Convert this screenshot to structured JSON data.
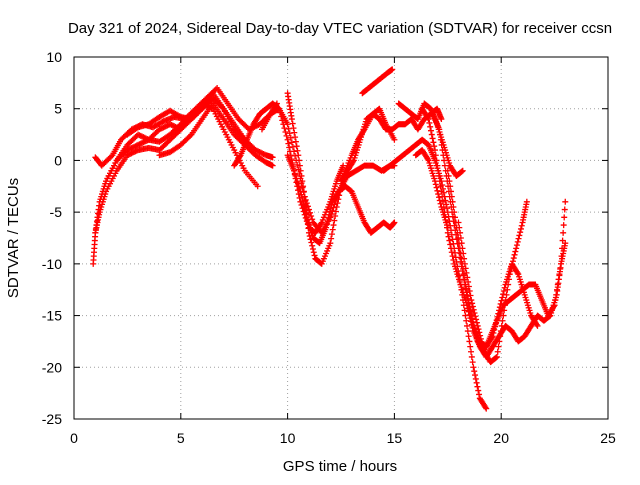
{
  "chart_data": {
    "type": "scatter",
    "title": "Day 321 of 2024, Sidereal Day-to-day VTEC variation (SDTVAR) for receiver ccsn",
    "xlabel": "GPS time / hours",
    "ylabel": "SDTVAR / TECUs",
    "xlim": [
      0,
      25
    ],
    "ylim": [
      -25,
      10
    ],
    "x_ticks": [
      "0",
      "5",
      "10",
      "15",
      "20",
      "25"
    ],
    "y_ticks": [
      "-25",
      "-20",
      "-15",
      "-10",
      "-5",
      "0",
      "5",
      "10"
    ],
    "x_tick_values": [
      0,
      5,
      10,
      15,
      20,
      25
    ],
    "y_tick_values": [
      -25,
      -20,
      -15,
      -10,
      -5,
      0,
      5,
      10
    ],
    "grid": true,
    "marker": "plus",
    "series_color": "#ff0000",
    "series": [
      {
        "x": [
          0.9,
          1.0,
          1.2,
          1.5,
          2.0,
          2.5,
          3.0,
          3.5,
          4.0,
          4.5,
          5.0,
          5.5,
          6.0,
          6.5,
          7.0,
          7.5,
          8.0,
          8.6
        ],
        "y": [
          -10.0,
          -7.0,
          -5.0,
          -3.0,
          -1.0,
          0.5,
          1.0,
          1.2,
          1.0,
          2.0,
          3.0,
          4.5,
          5.5,
          5.0,
          3.0,
          1.0,
          -1.0,
          -2.5
        ]
      },
      {
        "x": [
          1.0,
          1.2,
          1.5,
          2.0,
          2.5,
          3.0,
          3.5,
          4.0,
          4.5,
          5.0,
          5.5,
          6.0,
          6.5,
          7.0,
          7.5,
          8.0,
          8.5,
          9.0,
          9.3
        ],
        "y": [
          -7.0,
          -4.0,
          -2.0,
          0.0,
          1.0,
          1.5,
          2.0,
          1.8,
          2.5,
          3.5,
          4.5,
          5.5,
          6.5,
          5.0,
          3.0,
          2.0,
          1.0,
          0.5,
          0.3
        ]
      },
      {
        "x": [
          1.0,
          1.3,
          1.8,
          2.2,
          2.7,
          3.2,
          3.7,
          4.2,
          4.7,
          5.2,
          5.7,
          6.2,
          6.7,
          7.2,
          7.7,
          8.2,
          8.7,
          9.2,
          9.5
        ],
        "y": [
          0.3,
          -0.5,
          0.5,
          2.0,
          3.0,
          3.5,
          3.2,
          3.8,
          4.2,
          4.0,
          5.0,
          6.0,
          7.0,
          5.5,
          4.0,
          3.0,
          3.5,
          4.5,
          5.5
        ]
      },
      {
        "x": [
          1.5,
          2.0,
          2.5,
          3.0,
          3.5,
          4.0,
          4.5,
          5.0,
          5.5,
          6.0,
          6.5,
          7.0,
          7.5,
          8.0
        ],
        "y": [
          -2.0,
          0.0,
          1.5,
          2.5,
          2.0,
          3.0,
          3.5,
          3.0,
          4.0,
          5.0,
          6.0,
          5.0,
          3.5,
          2.0
        ]
      },
      {
        "x": [
          2.5,
          3.0,
          3.5,
          4.0,
          4.5,
          5.0,
          5.5,
          6.0,
          6.5
        ],
        "y": [
          2.5,
          3.2,
          3.5,
          4.2,
          4.8,
          4.2,
          4.0,
          5.0,
          6.0
        ]
      },
      {
        "x": [
          4.0,
          4.5,
          5.0,
          5.5,
          6.0,
          6.5,
          7.0,
          7.5,
          8.0,
          8.5,
          9.0,
          9.3
        ],
        "y": [
          0.5,
          0.8,
          1.5,
          2.5,
          4.0,
          5.5,
          4.0,
          2.5,
          1.5,
          0.5,
          -0.2,
          -0.5
        ]
      },
      {
        "x": [
          7.5,
          7.8,
          8.1,
          8.4,
          8.7,
          9.0,
          9.3,
          9.6,
          10.0,
          10.3,
          10.6,
          11.0,
          11.3,
          11.6,
          12.0,
          12.3,
          12.6
        ],
        "y": [
          -0.5,
          0.5,
          2.0,
          3.5,
          4.5,
          5.0,
          5.5,
          5.0,
          2.0,
          -1.0,
          -4.0,
          -6.5,
          -7.0,
          -6.0,
          -4.0,
          -2.0,
          -0.5
        ]
      },
      {
        "x": [
          8.8,
          9.2,
          9.6,
          10.0,
          10.4,
          10.8,
          11.2,
          11.6,
          12.0,
          12.4,
          12.8,
          13.2,
          13.6,
          14.0,
          14.4,
          14.8,
          15.0
        ],
        "y": [
          3.0,
          4.5,
          5.0,
          3.5,
          0.0,
          -3.5,
          -6.0,
          -7.0,
          -5.5,
          -3.0,
          -1.5,
          -1.0,
          -0.5,
          -0.5,
          -1.0,
          -0.5,
          -0.5
        ]
      },
      {
        "x": [
          10.0,
          10.2,
          10.5,
          10.8,
          11.0,
          11.3,
          11.6,
          12.0,
          12.3,
          12.6,
          13.0,
          13.3,
          13.6,
          14.0,
          14.3,
          14.6,
          15.0
        ],
        "y": [
          6.5,
          4.0,
          0.5,
          -3.5,
          -7.0,
          -9.5,
          -10.0,
          -8.0,
          -4.5,
          -1.5,
          0.5,
          2.0,
          3.0,
          4.5,
          5.0,
          3.5,
          2.0
        ]
      },
      {
        "x": [
          10.0,
          10.3,
          10.6,
          10.9,
          11.2,
          11.5,
          11.8,
          12.1,
          12.4,
          12.7,
          13.0,
          13.3,
          13.6,
          13.9,
          14.2,
          14.5,
          14.8,
          15.0
        ],
        "y": [
          0.5,
          -1.0,
          -3.0,
          -5.5,
          -7.5,
          -8.0,
          -6.5,
          -4.0,
          -3.0,
          -2.5,
          -3.0,
          -4.5,
          -6.0,
          -7.0,
          -6.5,
          -6.0,
          -6.5,
          -6.0
        ]
      },
      {
        "x": [
          13.5,
          13.8,
          14.1,
          14.4,
          14.7,
          14.9
        ],
        "y": [
          6.5,
          7.0,
          7.5,
          8.0,
          8.5,
          8.8
        ]
      },
      {
        "x": [
          12.5,
          12.8,
          13.1,
          13.4,
          13.7,
          14.0,
          14.3,
          14.6,
          14.9,
          15.2,
          15.5,
          15.8,
          16.1,
          16.4,
          16.7,
          17.0,
          17.2
        ],
        "y": [
          -2.0,
          -1.0,
          0.0,
          2.0,
          4.0,
          4.5,
          4.0,
          3.0,
          3.0,
          3.5,
          3.5,
          4.0,
          3.0,
          4.0,
          4.5,
          5.0,
          4.0
        ]
      },
      {
        "x": [
          15.2,
          15.5,
          15.8,
          16.1,
          16.4,
          16.7,
          17.0,
          17.3,
          17.6,
          17.9,
          18.2
        ],
        "y": [
          5.5,
          5.0,
          4.5,
          4.0,
          5.5,
          5.0,
          3.5,
          1.5,
          -0.5,
          -1.5,
          -1.0
        ]
      },
      {
        "x": [
          14.5,
          14.8,
          15.1,
          15.4,
          15.7,
          16.0,
          16.3,
          16.6,
          16.9,
          17.2,
          17.5,
          17.8,
          18.1,
          18.4,
          18.7,
          19.0,
          19.3
        ],
        "y": [
          -1.0,
          -0.5,
          0.0,
          0.5,
          1.0,
          1.5,
          2.0,
          1.5,
          0.0,
          -2.0,
          -5.0,
          -8.5,
          -12.0,
          -16.0,
          -20.0,
          -23.0,
          -24.0
        ]
      },
      {
        "x": [
          16.3,
          16.6,
          16.9,
          17.2,
          17.5,
          17.8,
          18.1,
          18.4,
          18.7,
          19.0,
          19.3,
          19.6,
          19.9,
          20.2,
          20.5,
          20.8,
          21.1,
          21.4,
          21.7,
          22.0,
          22.3,
          22.6,
          22.8,
          23.0
        ],
        "y": [
          5.0,
          4.0,
          1.0,
          -3.0,
          -7.0,
          -10.0,
          -12.0,
          -14.0,
          -16.5,
          -18.0,
          -19.0,
          -18.0,
          -17.0,
          -16.0,
          -16.5,
          -17.5,
          -17.0,
          -16.0,
          -15.0,
          -15.5,
          -15.0,
          -13.0,
          -10.0,
          -8.0
        ]
      },
      {
        "x": [
          16.8,
          17.1,
          17.4,
          17.7,
          18.0,
          18.3,
          18.6,
          18.9,
          19.2,
          19.5,
          19.8,
          20.1,
          20.4,
          20.7,
          21.0,
          21.3,
          21.6,
          21.9,
          22.2,
          22.5,
          22.8,
          23.0
        ],
        "y": [
          4.5,
          3.0,
          -1.0,
          -5.0,
          -8.5,
          -12.0,
          -15.0,
          -17.5,
          -18.5,
          -17.0,
          -15.5,
          -14.0,
          -13.5,
          -13.0,
          -12.5,
          -12.0,
          -12.0,
          -13.5,
          -15.0,
          -14.0,
          -10.0,
          -4.0
        ]
      },
      {
        "x": [
          17.5,
          17.8,
          18.1,
          18.4,
          18.7,
          19.0,
          19.3,
          19.6,
          19.9,
          20.2,
          20.5,
          20.8,
          21.1,
          21.4,
          21.7
        ],
        "y": [
          -1.0,
          -5.0,
          -9.0,
          -13.0,
          -16.0,
          -17.5,
          -18.0,
          -17.0,
          -14.5,
          -12.0,
          -10.0,
          -11.0,
          -13.0,
          -15.0,
          -16.0
        ]
      },
      {
        "x": [
          18.0,
          18.3,
          18.6,
          18.9,
          19.2,
          19.5,
          19.8,
          20.1,
          20.4,
          20.7,
          21.0,
          21.2
        ],
        "y": [
          -6.0,
          -10.0,
          -13.5,
          -16.0,
          -18.5,
          -19.5,
          -19.0,
          -15.0,
          -11.0,
          -8.5,
          -6.0,
          -4.0
        ]
      },
      {
        "x": [
          16.0,
          16.3,
          16.6,
          16.9,
          17.2,
          17.5
        ],
        "y": [
          0.5,
          1.0,
          0.0,
          -2.0,
          -4.5,
          -6.5
        ]
      }
    ]
  }
}
